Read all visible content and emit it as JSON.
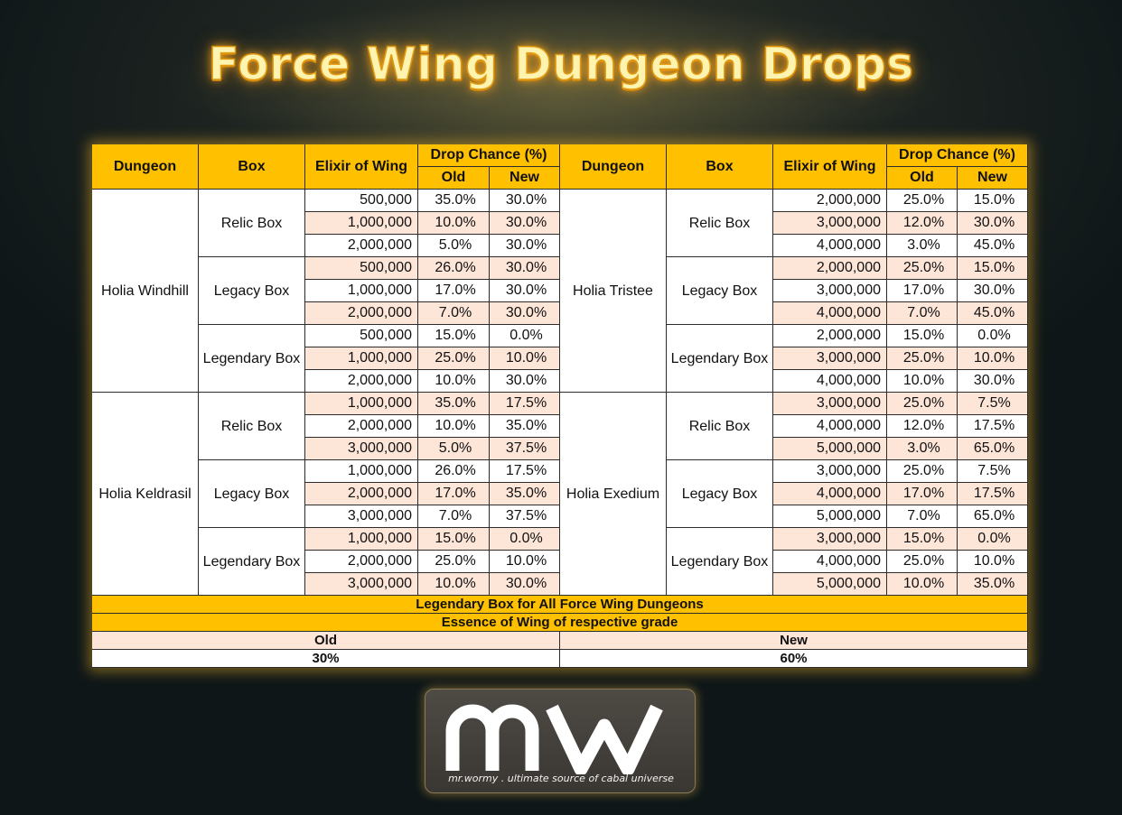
{
  "title": "Force Wing Dungeon Drops",
  "headers": {
    "dungeon": "Dungeon",
    "box": "Box",
    "elixir": "Elixir of Wing",
    "drop_chance": "Drop Chance (%)",
    "old": "Old",
    "new": "New"
  },
  "dungeons": [
    {
      "name": "Holia Windhill",
      "boxes": [
        {
          "name": "Relic Box",
          "rows": [
            {
              "elixir": "500,000",
              "old": "35.0%",
              "new": "30.0%"
            },
            {
              "elixir": "1,000,000",
              "old": "10.0%",
              "new": "30.0%"
            },
            {
              "elixir": "2,000,000",
              "old": "5.0%",
              "new": "30.0%"
            }
          ]
        },
        {
          "name": "Legacy Box",
          "rows": [
            {
              "elixir": "500,000",
              "old": "26.0%",
              "new": "30.0%"
            },
            {
              "elixir": "1,000,000",
              "old": "17.0%",
              "new": "30.0%"
            },
            {
              "elixir": "2,000,000",
              "old": "7.0%",
              "new": "30.0%"
            }
          ]
        },
        {
          "name": "Legendary Box",
          "rows": [
            {
              "elixir": "500,000",
              "old": "15.0%",
              "new": "0.0%"
            },
            {
              "elixir": "1,000,000",
              "old": "25.0%",
              "new": "10.0%"
            },
            {
              "elixir": "2,000,000",
              "old": "10.0%",
              "new": "30.0%"
            }
          ]
        }
      ]
    },
    {
      "name": "Holia Keldrasil",
      "boxes": [
        {
          "name": "Relic Box",
          "rows": [
            {
              "elixir": "1,000,000",
              "old": "35.0%",
              "new": "17.5%"
            },
            {
              "elixir": "2,000,000",
              "old": "10.0%",
              "new": "35.0%"
            },
            {
              "elixir": "3,000,000",
              "old": "5.0%",
              "new": "37.5%"
            }
          ]
        },
        {
          "name": "Legacy Box",
          "rows": [
            {
              "elixir": "1,000,000",
              "old": "26.0%",
              "new": "17.5%"
            },
            {
              "elixir": "2,000,000",
              "old": "17.0%",
              "new": "35.0%"
            },
            {
              "elixir": "3,000,000",
              "old": "7.0%",
              "new": "37.5%"
            }
          ]
        },
        {
          "name": "Legendary Box",
          "rows": [
            {
              "elixir": "1,000,000",
              "old": "15.0%",
              "new": "0.0%"
            },
            {
              "elixir": "2,000,000",
              "old": "25.0%",
              "new": "10.0%"
            },
            {
              "elixir": "3,000,000",
              "old": "10.0%",
              "new": "30.0%"
            }
          ]
        }
      ]
    },
    {
      "name": "Holia Tristee",
      "boxes": [
        {
          "name": "Relic Box",
          "rows": [
            {
              "elixir": "2,000,000",
              "old": "25.0%",
              "new": "15.0%"
            },
            {
              "elixir": "3,000,000",
              "old": "12.0%",
              "new": "30.0%"
            },
            {
              "elixir": "4,000,000",
              "old": "3.0%",
              "new": "45.0%"
            }
          ]
        },
        {
          "name": "Legacy Box",
          "rows": [
            {
              "elixir": "2,000,000",
              "old": "25.0%",
              "new": "15.0%"
            },
            {
              "elixir": "3,000,000",
              "old": "17.0%",
              "new": "30.0%"
            },
            {
              "elixir": "4,000,000",
              "old": "7.0%",
              "new": "45.0%"
            }
          ]
        },
        {
          "name": "Legendary Box",
          "rows": [
            {
              "elixir": "2,000,000",
              "old": "15.0%",
              "new": "0.0%"
            },
            {
              "elixir": "3,000,000",
              "old": "25.0%",
              "new": "10.0%"
            },
            {
              "elixir": "4,000,000",
              "old": "10.0%",
              "new": "30.0%"
            }
          ]
        }
      ]
    },
    {
      "name": "Holia Exedium",
      "boxes": [
        {
          "name": "Relic Box",
          "rows": [
            {
              "elixir": "3,000,000",
              "old": "25.0%",
              "new": "7.5%"
            },
            {
              "elixir": "4,000,000",
              "old": "12.0%",
              "new": "17.5%"
            },
            {
              "elixir": "5,000,000",
              "old": "3.0%",
              "new": "65.0%"
            }
          ]
        },
        {
          "name": "Legacy Box",
          "rows": [
            {
              "elixir": "3,000,000",
              "old": "25.0%",
              "new": "7.5%"
            },
            {
              "elixir": "4,000,000",
              "old": "17.0%",
              "new": "17.5%"
            },
            {
              "elixir": "5,000,000",
              "old": "7.0%",
              "new": "65.0%"
            }
          ]
        },
        {
          "name": "Legendary Box",
          "rows": [
            {
              "elixir": "3,000,000",
              "old": "15.0%",
              "new": "0.0%"
            },
            {
              "elixir": "4,000,000",
              "old": "25.0%",
              "new": "10.0%"
            },
            {
              "elixir": "5,000,000",
              "old": "10.0%",
              "new": "35.0%"
            }
          ]
        }
      ]
    }
  ],
  "footer": {
    "line1": "Legendary Box for All Force Wing Dungeons",
    "line2": "Essence of Wing of respective grade",
    "old_label": "Old",
    "new_label": "New",
    "old_value": "30%",
    "new_value": "60%"
  },
  "logo": {
    "letters": "mw",
    "tagline": "mr.wormy . ultimate source of cabal universe"
  },
  "colors": {
    "header": "#ffc000",
    "shaded_row": "#fde5d8",
    "title_glow": "#ffaa1e"
  }
}
